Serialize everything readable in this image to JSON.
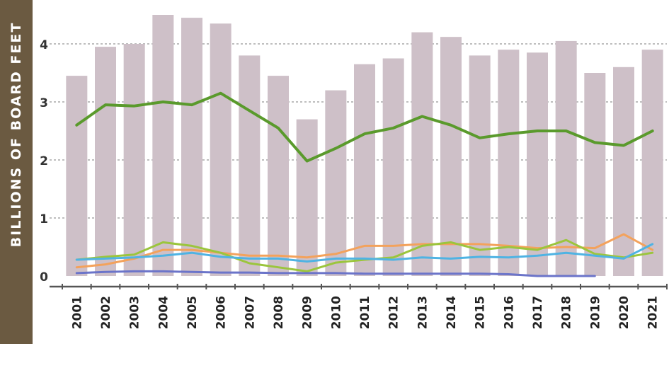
{
  "chart_data": {
    "type": "bar",
    "ylabel": "BILLIONS OF BOARD FEET",
    "ylim": [
      0,
      4.5
    ],
    "yticks": [
      "0",
      "1",
      "2",
      "3",
      "4"
    ],
    "grid": true,
    "categories": [
      "2001",
      "2002",
      "2003",
      "2004",
      "2005",
      "2006",
      "2007",
      "2008",
      "2009",
      "2010",
      "2011",
      "2012",
      "2013",
      "2014",
      "2015",
      "2016",
      "2017",
      "2018",
      "2019",
      "2020",
      "2021"
    ],
    "bars": [
      3.45,
      3.95,
      4.0,
      4.5,
      4.45,
      4.35,
      3.8,
      3.45,
      2.7,
      3.2,
      3.65,
      3.75,
      4.2,
      4.12,
      3.8,
      3.9,
      3.85,
      4.05,
      3.5,
      3.6,
      3.9
    ],
    "series": [
      {
        "color": "#5a9a2c",
        "values": [
          2.6,
          2.95,
          2.93,
          3.0,
          2.95,
          3.15,
          2.85,
          2.55,
          1.98,
          2.2,
          2.45,
          2.55,
          2.75,
          2.6,
          2.38,
          2.45,
          2.5,
          2.5,
          2.3,
          2.25,
          2.5
        ]
      },
      {
        "color": "#f3a25c",
        "values": [
          0.15,
          0.2,
          0.3,
          0.45,
          0.45,
          0.4,
          0.35,
          0.35,
          0.32,
          0.38,
          0.52,
          0.52,
          0.55,
          0.55,
          0.55,
          0.52,
          0.48,
          0.5,
          0.48,
          0.72,
          0.45
        ]
      },
      {
        "color": "#9bc53d",
        "values": [
          0.28,
          0.33,
          0.37,
          0.58,
          0.52,
          0.4,
          0.22,
          0.15,
          0.08,
          0.23,
          0.28,
          0.32,
          0.52,
          0.58,
          0.45,
          0.5,
          0.45,
          0.62,
          0.38,
          0.32,
          0.4
        ]
      },
      {
        "color": "#4fb3e3",
        "values": [
          0.28,
          0.3,
          0.32,
          0.35,
          0.4,
          0.33,
          0.3,
          0.3,
          0.25,
          0.3,
          0.3,
          0.28,
          0.32,
          0.3,
          0.33,
          0.32,
          0.35,
          0.4,
          0.35,
          0.3,
          0.55
        ]
      },
      {
        "color": "#6b74c9",
        "values": [
          0.05,
          0.07,
          0.08,
          0.08,
          0.07,
          0.06,
          0.06,
          0.05,
          0.05,
          0.05,
          0.04,
          0.04,
          0.04,
          0.04,
          0.04,
          0.03,
          0.0,
          0.0,
          0.0,
          null,
          null
        ]
      }
    ],
    "colors": {
      "bar": "#cec0c8",
      "band": "#6b5a41",
      "grid": "#a9a9a9",
      "axis": "#555555"
    }
  }
}
